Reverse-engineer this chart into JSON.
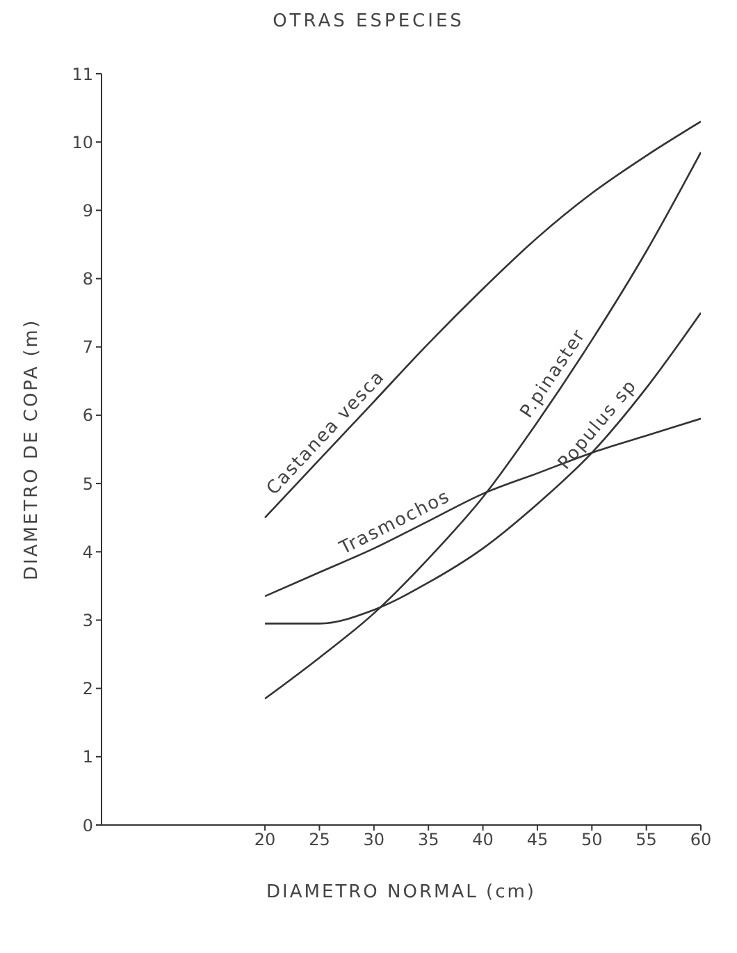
{
  "chart_data": {
    "type": "line",
    "title": "OTRAS ESPECIES",
    "xlabel": "DIAMETRO NORMAL (cm)",
    "ylabel": "DIAMETRO DE COPA (m)",
    "x": [
      20,
      25,
      30,
      35,
      40,
      45,
      50,
      55,
      60
    ],
    "marker": "none",
    "line_style": "solid",
    "series": [
      {
        "name": "Castanea vesca",
        "color": "#333333",
        "values": [
          4.5,
          5.35,
          6.2,
          7.05,
          7.85,
          8.6,
          9.25,
          9.8,
          10.3
        ]
      },
      {
        "name": "P.pinaster",
        "color": "#333333",
        "values": [
          1.85,
          2.45,
          3.1,
          3.9,
          4.8,
          5.9,
          7.1,
          8.4,
          9.85
        ]
      },
      {
        "name": "Populus sp",
        "color": "#333333",
        "values": [
          2.95,
          2.95,
          3.15,
          3.55,
          4.05,
          4.7,
          5.45,
          6.4,
          7.5
        ]
      },
      {
        "name": "Trasmochos",
        "color": "#333333",
        "values": [
          3.35,
          3.7,
          4.05,
          4.45,
          4.85,
          5.15,
          5.45,
          5.7,
          5.95
        ]
      }
    ],
    "xlim": [
      5,
      60
    ],
    "ylim": [
      0,
      11
    ],
    "xticks": [
      20,
      25,
      30,
      35,
      40,
      45,
      50,
      55,
      60
    ],
    "yticks": [
      0,
      1,
      2,
      3,
      4,
      5,
      6,
      7,
      8,
      9,
      10,
      11
    ]
  }
}
